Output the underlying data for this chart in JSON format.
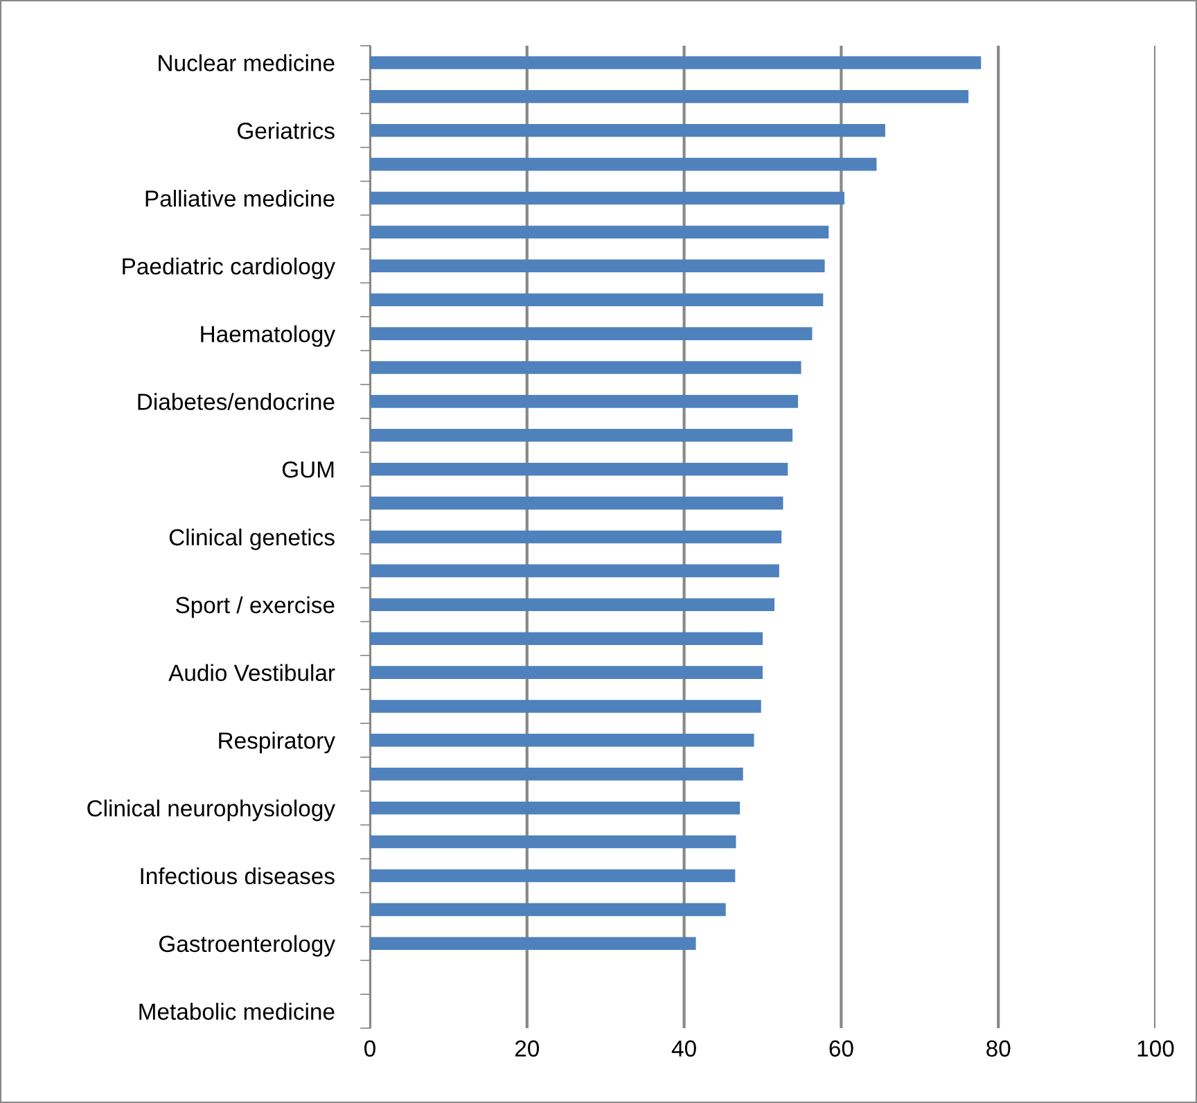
{
  "chart_data": {
    "type": "bar",
    "orientation": "horizontal",
    "categories": [
      "Nuclear medicine",
      null,
      "Geriatrics",
      null,
      "Palliative medicine",
      null,
      "Paediatric cardiology",
      null,
      "Haematology",
      null,
      "Diabetes/endocrine",
      null,
      "GUM",
      null,
      "Clinical genetics",
      null,
      "Sport / exercise",
      null,
      "Audio Vestibular",
      null,
      "Respiratory",
      null,
      "Clinical neurophysiology",
      null,
      "Infectious diseases",
      null,
      "Gastroenterology",
      null,
      "Metabolic medicine"
    ],
    "values": [
      77.8,
      76.2,
      65.6,
      64.5,
      60.4,
      58.4,
      57.9,
      57.7,
      56.3,
      54.9,
      54.5,
      53.8,
      53.2,
      52.6,
      52.4,
      52.1,
      51.5,
      50.0,
      50.0,
      49.8,
      48.9,
      47.5,
      47.1,
      46.6,
      46.5,
      45.3,
      41.5,
      null,
      null
    ],
    "color": "#4f81bd",
    "xlim": [
      0,
      100
    ],
    "xticks": [
      0,
      20,
      40,
      60,
      80,
      100
    ],
    "grid": "x"
  }
}
